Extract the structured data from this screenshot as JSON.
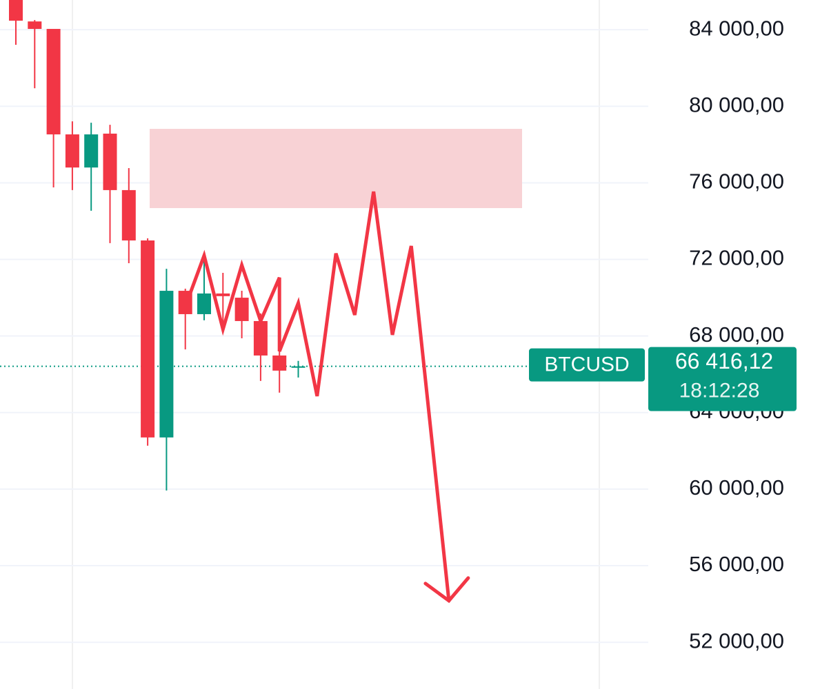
{
  "chart_data": {
    "type": "candlestick",
    "symbol": "BTCUSD",
    "ylim": [
      49560,
      85550
    ],
    "yticks": [
      {
        "value": 52000,
        "label": "52 000,00"
      },
      {
        "value": 56000,
        "label": "56 000,00"
      },
      {
        "value": 60000,
        "label": "60 000,00"
      },
      {
        "value": 64000,
        "label": "64 000,00"
      },
      {
        "value": 68000,
        "label": "68 000,00"
      },
      {
        "value": 72000,
        "label": "72 000,00"
      },
      {
        "value": 76000,
        "label": "76 000,00"
      },
      {
        "value": 80000,
        "label": "80 000,00"
      },
      {
        "value": 84000,
        "label": "84 000,00"
      }
    ],
    "grid": true,
    "up_color": "#089981",
    "down_color": "#f23645",
    "open": [
      85800,
      84430,
      84040,
      78530,
      76800,
      78570,
      75620,
      72990,
      62700,
      70360,
      69140,
      70220,
      70000,
      68780,
      66980,
      66340
    ],
    "high": [
      86000,
      84500,
      84040,
      79210,
      79140,
      79030,
      76770,
      73100,
      71510,
      70470,
      72130,
      71300,
      70360,
      69180,
      67560,
      66700
    ],
    "low": [
      83210,
      80940,
      75760,
      75620,
      74540,
      72850,
      71800,
      62270,
      59930,
      67300,
      68820,
      68350,
      67880,
      65650,
      65040,
      65830
    ],
    "close": [
      84470,
      84040,
      78530,
      76800,
      78530,
      75620,
      72990,
      62700,
      70360,
      69140,
      70220,
      70080,
      68780,
      66980,
      66190,
      66416.12
    ],
    "last_price": 66416.12,
    "last_price_label": "66 416,12",
    "countdown": "18:12:28",
    "zone": {
      "low": 74680,
      "high": 78820,
      "color": "#f8d2d5"
    },
    "drawing": {
      "color": "#f23645",
      "x": [
        9.2,
        10,
        11,
        12,
        13,
        14,
        14,
        15,
        16,
        17,
        18,
        19,
        20,
        21,
        23
      ],
      "values": [
        70070,
        72200,
        68350,
        71700,
        68780,
        71050,
        67200,
        69720,
        64860,
        72310,
        69100,
        75540,
        68060,
        72700,
        54170
      ]
    }
  }
}
